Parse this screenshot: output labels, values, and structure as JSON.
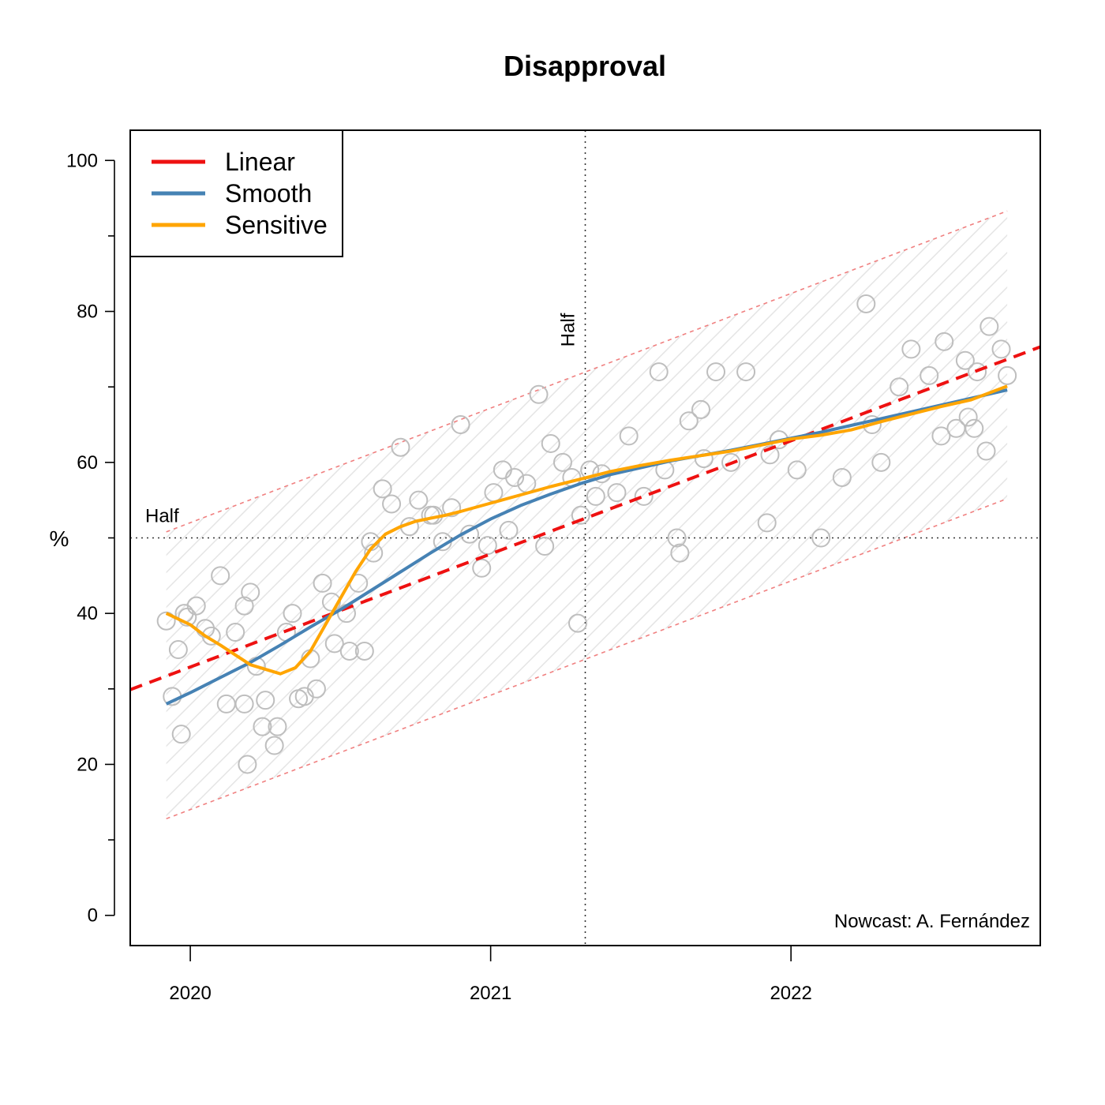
{
  "chart_data": {
    "type": "scatter",
    "title": "Disapproval",
    "xlabel": "",
    "ylabel": "%",
    "xlim": [
      2019.8,
      2022.83
    ],
    "ylim": [
      -4,
      104
    ],
    "x_ticks": [
      2020,
      2021,
      2022
    ],
    "x_tick_labels": [
      "2020",
      "2021",
      "2022"
    ],
    "y_ticks": [
      0,
      20,
      40,
      60,
      80,
      100
    ],
    "y_tick_labels": [
      "0",
      "20",
      "40",
      "60",
      "80",
      "100"
    ],
    "y_minor_ticks": [
      10,
      30,
      50,
      70,
      90
    ],
    "grid": false,
    "legend": {
      "position": "top-left",
      "entries": [
        {
          "label": "Linear",
          "color": "#ee1111",
          "style": "solid"
        },
        {
          "label": "Smooth",
          "color": "#4682b4",
          "style": "solid"
        },
        {
          "label": "Sensitive",
          "color": "#ffa500",
          "style": "solid"
        }
      ]
    },
    "reference_lines": {
      "horizontal": {
        "y": 50,
        "label": "Half"
      },
      "vertical": {
        "x": 2021.315,
        "label": "Half"
      }
    },
    "annotation": "Nowcast: A. Fernández",
    "band": {
      "x_start": 2019.92,
      "x_end": 2022.72,
      "lower_start": 12.8,
      "lower_end": 55.2,
      "upper_start": 50.8,
      "upper_end": 93.3,
      "color": "#f08080"
    },
    "series": [
      {
        "name": "Linear",
        "kind": "dashed-line",
        "color": "#ee1111",
        "x": [
          2019.8,
          2022.83
        ],
        "y": [
          29.9,
          75.3
        ]
      },
      {
        "name": "Smooth",
        "kind": "line",
        "color": "#4682b4",
        "x": [
          2019.92,
          2020.0,
          2020.1,
          2020.2,
          2020.3,
          2020.4,
          2020.5,
          2020.6,
          2020.7,
          2020.8,
          2020.9,
          2021.0,
          2021.1,
          2021.2,
          2021.3,
          2021.4,
          2021.5,
          2021.6,
          2021.7,
          2021.8,
          2021.9,
          2022.0,
          2022.1,
          2022.2,
          2022.3,
          2022.4,
          2022.5,
          2022.6,
          2022.72
        ],
        "y": [
          28,
          29.5,
          31.5,
          33.5,
          35.8,
          38.2,
          40.5,
          43,
          45.5,
          48,
          50.4,
          52.5,
          54.3,
          55.8,
          57.2,
          58.4,
          59.3,
          60.2,
          60.9,
          61.6,
          62.4,
          63.2,
          64,
          64.9,
          65.8,
          66.7,
          67.6,
          68.5,
          69.6
        ]
      },
      {
        "name": "Sensitive",
        "kind": "line",
        "color": "#ffa500",
        "x": [
          2019.92,
          2020.0,
          2020.05,
          2020.1,
          2020.15,
          2020.2,
          2020.25,
          2020.3,
          2020.35,
          2020.4,
          2020.45,
          2020.5,
          2020.55,
          2020.6,
          2020.65,
          2020.7,
          2020.75,
          2020.8,
          2020.85,
          2020.9,
          2021.0,
          2021.1,
          2021.2,
          2021.3,
          2021.4,
          2021.5,
          2021.6,
          2021.7,
          2021.8,
          2021.9,
          2022.0,
          2022.1,
          2022.2,
          2022.3,
          2022.4,
          2022.5,
          2022.6,
          2022.72
        ],
        "y": [
          40,
          38.5,
          37,
          35.8,
          34.5,
          33.2,
          32.6,
          32,
          32.8,
          35,
          38.5,
          42,
          45.5,
          48.5,
          50.5,
          51.5,
          52.2,
          52.6,
          53,
          53.5,
          54.6,
          55.7,
          56.8,
          57.8,
          58.8,
          59.6,
          60.3,
          60.9,
          61.5,
          62.3,
          63.1,
          63.6,
          64.3,
          65.4,
          66.4,
          67.4,
          68.3,
          70.1
        ]
      }
    ],
    "points": {
      "name": "Polls",
      "color": "#bebebe",
      "x": [
        2019.92,
        2019.98,
        2019.97,
        2020.02,
        2019.94,
        2019.99,
        2020.07,
        2020.12,
        2019.96,
        2020.05,
        2020.1,
        2020.18,
        2020.2,
        2020.22,
        2020.15,
        2020.25,
        2020.28,
        2020.32,
        2020.36,
        2020.4,
        2020.44,
        2020.48,
        2020.52,
        2020.56,
        2020.58,
        2020.61,
        2020.64,
        2020.67,
        2020.7,
        2020.73,
        2020.76,
        2020.8,
        2020.84,
        2020.87,
        2020.9,
        2020.93,
        2020.97,
        2021.01,
        2021.04,
        2021.08,
        2021.12,
        2021.16,
        2021.2,
        2021.24,
        2021.27,
        2021.3,
        2021.33,
        2021.37,
        2021.42,
        2021.46,
        2021.51,
        2021.56,
        2021.62,
        2021.66,
        2021.7,
        2021.75,
        2021.8,
        2021.85,
        2021.92,
        2021.96,
        2022.02,
        2022.1,
        2022.17,
        2022.25,
        2022.3,
        2022.4,
        2022.46,
        2022.5,
        2022.55,
        2022.58,
        2022.62,
        2022.66,
        2022.7,
        2022.72,
        2022.65,
        2022.61,
        2021.06,
        2021.18,
        2021.29,
        2020.18,
        2020.19,
        2020.42,
        2020.47,
        2020.53,
        2020.34,
        2020.38,
        2020.29,
        2020.24,
        2021.63,
        2021.93,
        2022.27,
        2022.36,
        2022.51,
        2022.59,
        2021.35,
        2021.58,
        2021.71,
        2020.81,
        2020.99,
        2020.6
      ],
      "y": [
        39,
        40,
        24,
        41,
        29,
        39.5,
        37,
        28,
        35.2,
        38,
        45,
        28,
        42.8,
        33,
        37.5,
        28.5,
        22.5,
        37.5,
        28.7,
        34,
        44,
        36,
        40,
        44,
        35,
        48,
        56.5,
        54.5,
        62,
        51.5,
        55,
        53,
        49.5,
        54,
        65,
        50.5,
        46,
        56,
        59,
        58,
        57.2,
        69,
        62.5,
        60,
        58,
        53,
        59,
        58.5,
        56,
        63.5,
        55.5,
        72,
        50,
        65.5,
        67,
        72,
        60,
        72,
        52,
        63,
        59,
        50,
        58,
        81,
        60,
        75,
        71.5,
        63.5,
        64.5,
        73.5,
        72,
        78,
        75,
        71.5,
        61.5,
        64.5,
        51,
        48.9,
        38.7,
        41,
        20,
        30,
        41.5,
        35,
        40,
        29,
        25,
        25,
        48,
        61,
        65,
        70,
        76,
        66,
        55.5,
        59,
        60.5,
        53,
        49,
        49.5
      ]
    }
  }
}
